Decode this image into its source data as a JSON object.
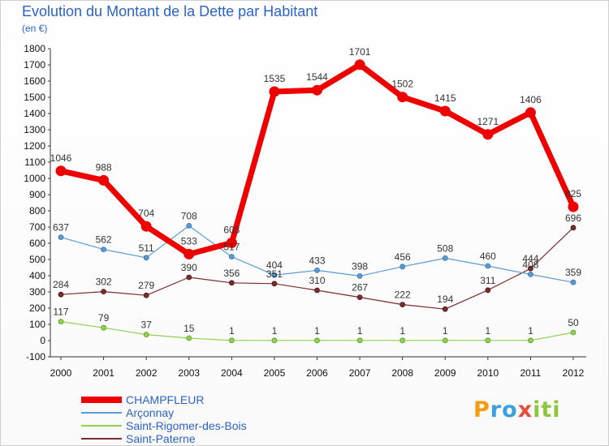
{
  "title": "Evolution du Montant de la Dette par Habitant",
  "subtitle": "(en €)",
  "logo": {
    "text": "Proxiti",
    "letters": [
      {
        "ch": "P",
        "color": "#f39c12"
      },
      {
        "ch": "r",
        "color": "#3aa0e0"
      },
      {
        "ch": "o",
        "color": "#3aa0e0"
      },
      {
        "ch": "x",
        "color": "#e74c3c"
      },
      {
        "ch": "i",
        "color": "#8dc63f"
      },
      {
        "ch": "t",
        "color": "#8dc63f"
      },
      {
        "ch": "i",
        "color": "#8dc63f"
      }
    ]
  },
  "chart_data": {
    "type": "line",
    "title": "Evolution du Montant de la Dette par Habitant",
    "subtitle": "(en €)",
    "x": [
      "2000",
      "2001",
      "2002",
      "2003",
      "2004",
      "2005",
      "2006",
      "2007",
      "2008",
      "2009",
      "2010",
      "2011",
      "2012"
    ],
    "ylim": [
      -100,
      1800
    ],
    "yticks": [
      -100,
      0,
      100,
      200,
      300,
      400,
      500,
      600,
      700,
      800,
      900,
      1000,
      1100,
      1200,
      1300,
      1400,
      1500,
      1600,
      1700,
      1800
    ],
    "grid": false,
    "legend_position": "bottom-left",
    "series": [
      {
        "name": "CHAMPFLEUR",
        "color": "#ee0000",
        "values": [
          1046,
          988,
          704,
          533,
          603,
          1535,
          1544,
          1701,
          1502,
          1415,
          1271,
          1406,
          825
        ]
      },
      {
        "name": "Arçonnay",
        "color": "#5b9bd5",
        "values": [
          637,
          562,
          511,
          708,
          517,
          404,
          433,
          398,
          456,
          508,
          460,
          408,
          359
        ]
      },
      {
        "name": "Saint-Rigomer-des-Bois",
        "color": "#92d050",
        "values": [
          117,
          79,
          37,
          15,
          1,
          1,
          1,
          1,
          1,
          1,
          1,
          1,
          50
        ]
      },
      {
        "name": "Saint-Paterne",
        "color": "#7b2c2c",
        "values": [
          284,
          302,
          279,
          390,
          356,
          351,
          310,
          267,
          222,
          194,
          311,
          444,
          696
        ]
      }
    ]
  }
}
